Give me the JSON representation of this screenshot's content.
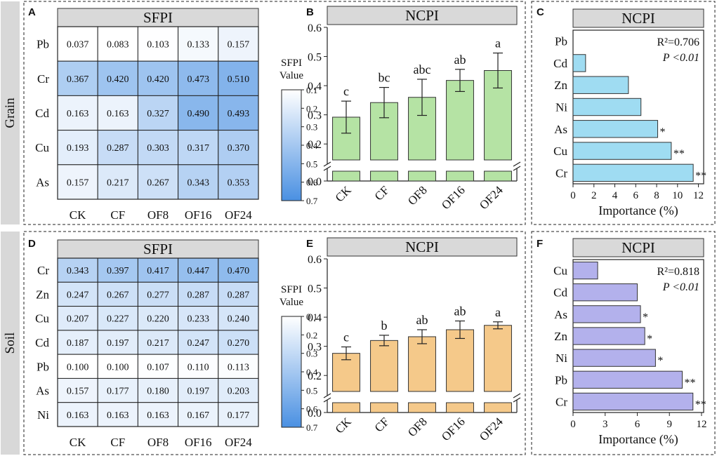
{
  "rows": [
    {
      "label": "Grain"
    },
    {
      "label": "Soil"
    }
  ],
  "chart_data": [
    {
      "panel": "A",
      "type": "heatmap",
      "title": "SFPI",
      "rows": [
        "Pb",
        "Cr",
        "Cd",
        "Cu",
        "As"
      ],
      "columns": [
        "CK",
        "CF",
        "OF8",
        "OF16",
        "OF24"
      ],
      "values": [
        [
          0.037,
          0.083,
          0.103,
          0.133,
          0.157
        ],
        [
          0.367,
          0.42,
          0.42,
          0.473,
          0.51
        ],
        [
          0.163,
          0.163,
          0.327,
          0.49,
          0.493
        ],
        [
          0.193,
          0.287,
          0.303,
          0.317,
          0.37
        ],
        [
          0.157,
          0.217,
          0.267,
          0.343,
          0.353
        ]
      ],
      "labels": [
        [
          "0.037",
          "0.083",
          "0.103",
          "0.133",
          "0.157"
        ],
        [
          "0.367",
          "0.420",
          "0.420",
          "0.473",
          "0.510"
        ],
        [
          "0.163",
          "0.163",
          "0.327",
          "0.490",
          "0.493"
        ],
        [
          "0.193",
          "0.287",
          "0.303",
          "0.317",
          "0.370"
        ],
        [
          "0.157",
          "0.217",
          "0.267",
          "0.343",
          "0.353"
        ]
      ],
      "colorbar": {
        "label": [
          "SFPI",
          "Value"
        ],
        "ticks": [
          "0.1",
          "0.2",
          "0.3",
          "0.4",
          "0.5",
          "0.6",
          "0.7"
        ],
        "range": [
          0.1,
          0.7
        ]
      },
      "colors": {
        "low": "#ffffff",
        "high": "#4a90e2"
      }
    },
    {
      "panel": "B",
      "type": "bar",
      "title": "NCPI",
      "categories": [
        "CK",
        "CF",
        "OF8",
        "OF16",
        "OF24"
      ],
      "values": [
        0.292,
        0.342,
        0.36,
        0.418,
        0.452
      ],
      "errors": [
        0.055,
        0.052,
        0.062,
        0.038,
        0.06
      ],
      "letters": [
        "c",
        "bc",
        "abc",
        "ab",
        "a"
      ],
      "ylim": [
        0,
        0.6
      ],
      "yticks": [
        "0.0",
        "0.2",
        "0.3",
        "0.4",
        "0.5",
        "0.6"
      ],
      "ytick_values": [
        0.0,
        0.2,
        0.3,
        0.4,
        0.5,
        0.6
      ],
      "axis_break": [
        0.05,
        0.15
      ],
      "color": "#b5e3a4",
      "xlabel": "",
      "ylabel": ""
    },
    {
      "panel": "C",
      "type": "bar",
      "orientation": "horizontal",
      "title": "NCPI",
      "categories": [
        "Pb",
        "Cd",
        "Zn",
        "Ni",
        "As",
        "Cu",
        "Cr"
      ],
      "values": [
        0,
        1.2,
        5.3,
        6.5,
        8.1,
        9.4,
        11.5
      ],
      "marks": [
        "",
        "",
        "",
        "",
        "*",
        "**",
        "**"
      ],
      "xlim": [
        0,
        12.5
      ],
      "xticks": [
        "0",
        "2",
        "4",
        "6",
        "8",
        "10",
        "12"
      ],
      "xtick_values": [
        0,
        2,
        4,
        6,
        8,
        10,
        12
      ],
      "xlabel": "Importance (%)",
      "stat_r2": "R²=0.706",
      "stat_p": "P <0.01",
      "color": "#9fdcf2"
    },
    {
      "panel": "D",
      "type": "heatmap",
      "title": "SFPI",
      "rows": [
        "Cr",
        "Zn",
        "Cu",
        "Cd",
        "Pb",
        "As",
        "Ni"
      ],
      "columns": [
        "CK",
        "CF",
        "OF8",
        "OF16",
        "OF24"
      ],
      "values": [
        [
          0.343,
          0.397,
          0.417,
          0.447,
          0.47
        ],
        [
          0.247,
          0.267,
          0.277,
          0.287,
          0.287
        ],
        [
          0.207,
          0.227,
          0.22,
          0.233,
          0.24
        ],
        [
          0.187,
          0.197,
          0.217,
          0.247,
          0.27
        ],
        [
          0.1,
          0.1,
          0.107,
          0.11,
          0.113
        ],
        [
          0.157,
          0.177,
          0.18,
          0.197,
          0.203
        ],
        [
          0.163,
          0.163,
          0.163,
          0.167,
          0.177
        ]
      ],
      "labels": [
        [
          "0.343",
          "0.397",
          "0.417",
          "0.447",
          "0.470"
        ],
        [
          "0.247",
          "0.267",
          "0.277",
          "0.287",
          "0.287"
        ],
        [
          "0.207",
          "0.227",
          "0.220",
          "0.233",
          "0.240"
        ],
        [
          "0.187",
          "0.197",
          "0.217",
          "0.247",
          "0.270"
        ],
        [
          "0.100",
          "0.100",
          "0.107",
          "0.110",
          "0.113"
        ],
        [
          "0.157",
          "0.177",
          "0.180",
          "0.197",
          "0.203"
        ],
        [
          "0.163",
          "0.163",
          "0.163",
          "0.167",
          "0.177"
        ]
      ],
      "colorbar": {
        "label": [
          "SFPI",
          "Value"
        ],
        "ticks": [
          "0.1",
          "0.2",
          "0.3",
          "0.4",
          "0.5",
          "0.6",
          "0.7"
        ],
        "range": [
          0.1,
          0.7
        ]
      },
      "colors": {
        "low": "#ffffff",
        "high": "#4a90e2"
      }
    },
    {
      "panel": "E",
      "type": "bar",
      "title": "NCPI",
      "categories": [
        "CK",
        "CF",
        "OF8",
        "OF16",
        "OF24"
      ],
      "values": [
        0.276,
        0.32,
        0.333,
        0.357,
        0.372
      ],
      "errors": [
        0.022,
        0.018,
        0.024,
        0.03,
        0.012
      ],
      "letters": [
        "c",
        "b",
        "ab",
        "ab",
        "a"
      ],
      "ylim": [
        0,
        0.6
      ],
      "yticks": [
        "0.0",
        "0.2",
        "0.3",
        "0.4",
        "0.5",
        "0.6"
      ],
      "ytick_values": [
        0.0,
        0.2,
        0.3,
        0.4,
        0.5,
        0.6
      ],
      "axis_break": [
        0.05,
        0.15
      ],
      "color": "#f5c98a",
      "xlabel": "",
      "ylabel": ""
    },
    {
      "panel": "F",
      "type": "bar",
      "orientation": "horizontal",
      "title": "NCPI",
      "categories": [
        "Cu",
        "Cd",
        "As",
        "Zn",
        "Ni",
        "Pb",
        "Cr"
      ],
      "values": [
        2.3,
        6.0,
        6.3,
        6.7,
        7.7,
        10.2,
        11.2
      ],
      "marks": [
        "",
        "",
        "*",
        "*",
        "*",
        "**",
        "**"
      ],
      "xlim": [
        0,
        12.2
      ],
      "xticks": [
        "0",
        "3",
        "6",
        "9",
        "12"
      ],
      "xtick_values": [
        0,
        3,
        6,
        9,
        12
      ],
      "xlabel": "Importance (%)",
      "stat_r2": "R²=0.818",
      "stat_p": "P <0.01",
      "color": "#b3b1ec"
    }
  ]
}
